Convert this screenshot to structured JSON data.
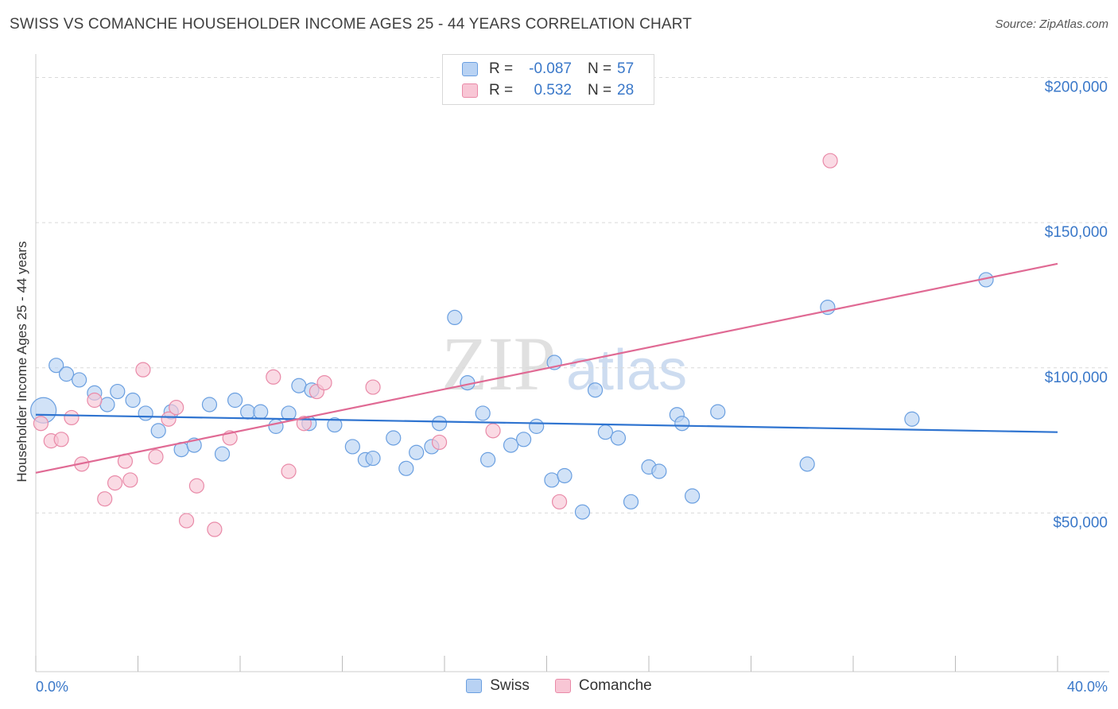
{
  "header": {
    "title": "SWISS VS COMANCHE HOUSEHOLDER INCOME AGES 25 - 44 YEARS CORRELATION CHART",
    "source": "Source: ZipAtlas.com"
  },
  "watermark": {
    "zip": "ZIP",
    "atlas": "atlas"
  },
  "legend": {
    "rows": [
      {
        "r_label": "R =",
        "r_value": "-0.087",
        "n_label": "N =",
        "n_value": "57"
      },
      {
        "r_label": "R =",
        "r_value": "0.532",
        "n_label": "N =",
        "n_value": "28"
      }
    ]
  },
  "bottom_legend": {
    "swiss": "Swiss",
    "comanche": "Comanche"
  },
  "colors": {
    "swiss_fill": "#b8d2f3",
    "swiss_stroke": "#6a9fe0",
    "swiss_line": "#2f74d0",
    "comanche_fill": "#f8c6d5",
    "comanche_stroke": "#e98aa8",
    "comanche_line": "#e06a94",
    "tick_text": "#3a78c9",
    "grid": "#d9d9d9"
  },
  "chart_data": {
    "type": "scatter",
    "title": "SWISS VS COMANCHE HOUSEHOLDER INCOME AGES 25 - 44 YEARS CORRELATION CHART",
    "xlabel": "",
    "ylabel": "Householder Income Ages 25 - 44 years",
    "xlim": [
      0,
      40
    ],
    "ylim": [
      0,
      210000
    ],
    "x_tick_labels": [
      "0.0%",
      "40.0%"
    ],
    "y_ticks": [
      50000,
      100000,
      150000,
      200000
    ],
    "y_tick_labels": [
      "$50,000",
      "$100,000",
      "$150,000",
      "$200,000"
    ],
    "grid": true,
    "legend_position": "top-center",
    "series": [
      {
        "name": "Swiss",
        "r": -0.087,
        "n": 57,
        "trend": {
          "x": [
            0,
            40
          ],
          "y": [
            88500,
            82500
          ]
        },
        "points": [
          [
            0.3,
            90000,
            16
          ],
          [
            0.8,
            105500,
            9
          ],
          [
            1.2,
            102500,
            9
          ],
          [
            1.7,
            100500,
            9
          ],
          [
            2.3,
            96000,
            9
          ],
          [
            2.8,
            92000,
            9
          ],
          [
            3.2,
            96500,
            9
          ],
          [
            3.8,
            93500,
            9
          ],
          [
            4.3,
            89000,
            9
          ],
          [
            4.8,
            83000,
            9
          ],
          [
            5.3,
            89500,
            9
          ],
          [
            5.7,
            76500,
            9
          ],
          [
            6.2,
            78000,
            9
          ],
          [
            6.8,
            92000,
            9
          ],
          [
            7.3,
            75000,
            9
          ],
          [
            7.8,
            93500,
            9
          ],
          [
            8.3,
            89500,
            9
          ],
          [
            8.8,
            89500,
            9
          ],
          [
            9.4,
            84500,
            9
          ],
          [
            9.9,
            89000,
            9
          ],
          [
            10.3,
            98500,
            9
          ],
          [
            10.8,
            97000,
            9
          ],
          [
            10.7,
            85500,
            9
          ],
          [
            11.7,
            85000,
            9
          ],
          [
            12.4,
            77500,
            9
          ],
          [
            12.9,
            73000,
            9
          ],
          [
            13.2,
            73500,
            9
          ],
          [
            14.0,
            80500,
            9
          ],
          [
            14.5,
            70000,
            9
          ],
          [
            14.9,
            75500,
            9
          ],
          [
            15.5,
            77500,
            9
          ],
          [
            15.8,
            85500,
            9
          ],
          [
            16.4,
            122000,
            9
          ],
          [
            16.9,
            99500,
            9
          ],
          [
            17.5,
            89000,
            9
          ],
          [
            17.7,
            73000,
            9
          ],
          [
            18.6,
            78000,
            9
          ],
          [
            19.1,
            80000,
            9
          ],
          [
            19.6,
            84500,
            9
          ],
          [
            20.2,
            66000,
            9
          ],
          [
            20.3,
            106500,
            9
          ],
          [
            20.7,
            67500,
            9
          ],
          [
            21.4,
            55000,
            9
          ],
          [
            21.9,
            97000,
            9
          ],
          [
            22.3,
            82500,
            9
          ],
          [
            22.8,
            80500,
            9
          ],
          [
            23.3,
            58500,
            9
          ],
          [
            24.0,
            70500,
            9
          ],
          [
            24.4,
            69000,
            9
          ],
          [
            25.1,
            88500,
            9
          ],
          [
            25.3,
            85500,
            9
          ],
          [
            25.7,
            60500,
            9
          ],
          [
            26.7,
            89500,
            9
          ],
          [
            30.2,
            71500,
            9
          ],
          [
            31.0,
            125500,
            9
          ],
          [
            34.3,
            87000,
            9
          ],
          [
            37.2,
            135000,
            9
          ]
        ]
      },
      {
        "name": "Comanche",
        "r": 0.532,
        "n": 28,
        "trend": {
          "x": [
            0,
            40
          ],
          "y": [
            68500,
            140500
          ]
        },
        "points": [
          [
            0.2,
            85500,
            9
          ],
          [
            0.6,
            79500,
            9
          ],
          [
            1.0,
            80000,
            9
          ],
          [
            1.4,
            87500,
            9
          ],
          [
            1.8,
            71500,
            9
          ],
          [
            2.3,
            93500,
            9
          ],
          [
            2.7,
            59500,
            9
          ],
          [
            3.1,
            65000,
            9
          ],
          [
            3.5,
            72500,
            9
          ],
          [
            3.7,
            66000,
            9
          ],
          [
            4.2,
            104000,
            9
          ],
          [
            4.7,
            74000,
            9
          ],
          [
            5.2,
            87000,
            9
          ],
          [
            5.5,
            91000,
            9
          ],
          [
            5.9,
            52000,
            9
          ],
          [
            6.3,
            64000,
            9
          ],
          [
            7.0,
            49000,
            9
          ],
          [
            7.6,
            80500,
            9
          ],
          [
            9.3,
            101500,
            9
          ],
          [
            9.9,
            69000,
            9
          ],
          [
            10.5,
            85500,
            9
          ],
          [
            11.0,
            96500,
            9
          ],
          [
            11.3,
            99500,
            9
          ],
          [
            13.2,
            98000,
            9
          ],
          [
            15.8,
            79000,
            9
          ],
          [
            17.9,
            83000,
            9
          ],
          [
            20.5,
            58500,
            9
          ],
          [
            31.1,
            176000,
            9
          ]
        ]
      }
    ]
  }
}
